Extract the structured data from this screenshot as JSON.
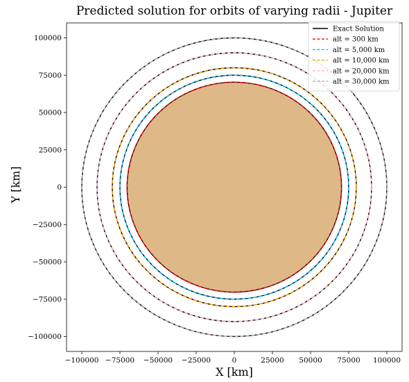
{
  "chart_data": {
    "type": "line",
    "title": "Predicted solution for orbits of varying radii - Jupiter",
    "xlabel": "X [km]",
    "ylabel": "Y [km]",
    "xlim": [
      -110000,
      110000
    ],
    "ylim": [
      -110000,
      110000
    ],
    "xticks": [
      -100000,
      -75000,
      -50000,
      -25000,
      0,
      25000,
      50000,
      75000,
      100000
    ],
    "yticks": [
      -100000,
      -75000,
      -50000,
      -25000,
      0,
      25000,
      50000,
      75000,
      100000
    ],
    "xtick_labels": [
      "−100000",
      "−75000",
      "−50000",
      "−25000",
      "0",
      "25000",
      "50000",
      "75000",
      "100000"
    ],
    "ytick_labels": [
      "−100000",
      "−75000",
      "−50000",
      "−25000",
      "0",
      "25000",
      "50000",
      "75000",
      "100000"
    ],
    "grid": false,
    "legend_position": "top-right",
    "planet": {
      "radius": 70000,
      "fill_color": "#deb887",
      "edge_color": "#000000"
    },
    "exact_solution": {
      "name": "Exact Solution",
      "color": "#000000",
      "style": "solid"
    },
    "series": [
      {
        "name": "alt = 300 km",
        "radius": 70300,
        "color": "#ff0000",
        "style": "dashed"
      },
      {
        "name": "alt = 5,000 km",
        "radius": 75000,
        "color": "#00bfff",
        "style": "dashed"
      },
      {
        "name": "alt = 10,000 km",
        "radius": 80000,
        "color": "#ffa500",
        "style": "dashed"
      },
      {
        "name": "alt = 20,000 km",
        "radius": 90000,
        "color": "#ffb6c1",
        "style": "dashed"
      },
      {
        "name": "alt = 30,000 km",
        "radius": 100000,
        "color": "#b0b0b0",
        "style": "dashed"
      }
    ]
  }
}
